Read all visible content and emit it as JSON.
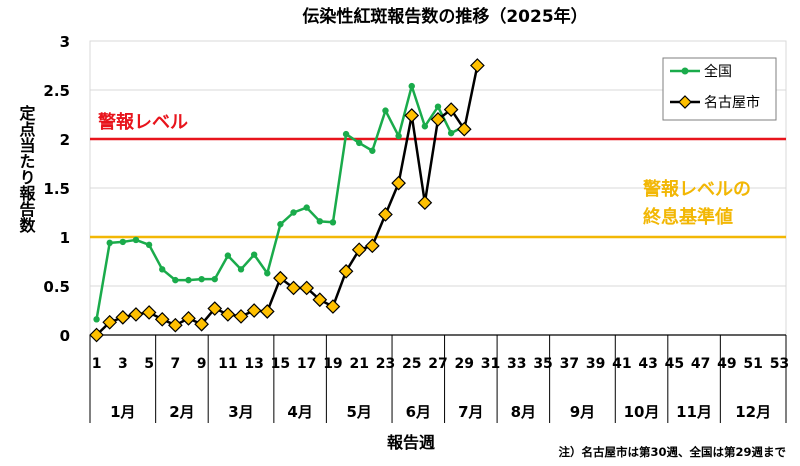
{
  "chart_data": {
    "type": "line",
    "title": "伝染性紅斑報告数の推移（2025年）",
    "xlabel": "報告週",
    "ylabel": "定点当たり報告数",
    "ylim": [
      0,
      3
    ],
    "yticks": [
      "0",
      "0.5",
      "1",
      "1.5",
      "2",
      "2.5",
      "3"
    ],
    "xlim": [
      1,
      53
    ],
    "xticks": [
      "1",
      "3",
      "5",
      "7",
      "9",
      "11",
      "13",
      "15",
      "17",
      "19",
      "21",
      "23",
      "25",
      "27",
      "29",
      "31",
      "33",
      "35",
      "37",
      "39",
      "41",
      "43",
      "45",
      "47",
      "49",
      "51",
      "53"
    ],
    "months": [
      "1月",
      "2月",
      "3月",
      "4月",
      "5月",
      "6月",
      "7月",
      "8月",
      "9月",
      "10月",
      "11月",
      "12月"
    ],
    "month_boundaries_week": [
      0.5,
      5.5,
      9.5,
      14.5,
      18.5,
      23.5,
      27.5,
      31.5,
      35.5,
      40.5,
      44.5,
      48.5,
      53.5
    ],
    "grid": true,
    "legend_position": "top-right",
    "note": "注）名古屋市は第30週、全国は第29週まで",
    "reference_lines": [
      {
        "label": "警報レベル",
        "value": 2,
        "color": "#e8141c",
        "label_color": "#e8141c"
      },
      {
        "label_lines": [
          "警報レベルの",
          "終息基準値"
        ],
        "value": 1,
        "color": "#f2b705",
        "label_color": "#f2b705"
      }
    ],
    "series": [
      {
        "name": "全国",
        "color": "#1aab4b",
        "marker": "circle",
        "x": [
          1,
          2,
          3,
          4,
          5,
          6,
          7,
          8,
          9,
          10,
          11,
          12,
          13,
          14,
          15,
          16,
          17,
          18,
          19,
          20,
          21,
          22,
          23,
          24,
          25,
          26,
          27,
          28,
          29
        ],
        "values": [
          0.16,
          0.94,
          0.95,
          0.97,
          0.92,
          0.67,
          0.56,
          0.56,
          0.57,
          0.57,
          0.81,
          0.67,
          0.82,
          0.63,
          1.13,
          1.25,
          1.3,
          1.16,
          1.15,
          2.05,
          1.96,
          1.88,
          2.29,
          2.03,
          2.54,
          2.13,
          2.33,
          2.06,
          2.13
        ]
      },
      {
        "name": "名古屋市",
        "color": "#000000",
        "marker": "diamond",
        "marker_fill": "#ffc000",
        "x": [
          1,
          2,
          3,
          4,
          5,
          6,
          7,
          8,
          9,
          10,
          11,
          12,
          13,
          14,
          15,
          16,
          17,
          18,
          19,
          20,
          21,
          22,
          23,
          24,
          25,
          26,
          27,
          28,
          29,
          30
        ],
        "values": [
          0.0,
          0.13,
          0.18,
          0.21,
          0.23,
          0.16,
          0.1,
          0.17,
          0.11,
          0.27,
          0.21,
          0.19,
          0.25,
          0.24,
          0.58,
          0.48,
          0.48,
          0.36,
          0.29,
          0.65,
          0.87,
          0.91,
          1.23,
          1.55,
          2.24,
          1.35,
          2.2,
          2.3,
          2.1,
          2.75
        ]
      }
    ]
  }
}
